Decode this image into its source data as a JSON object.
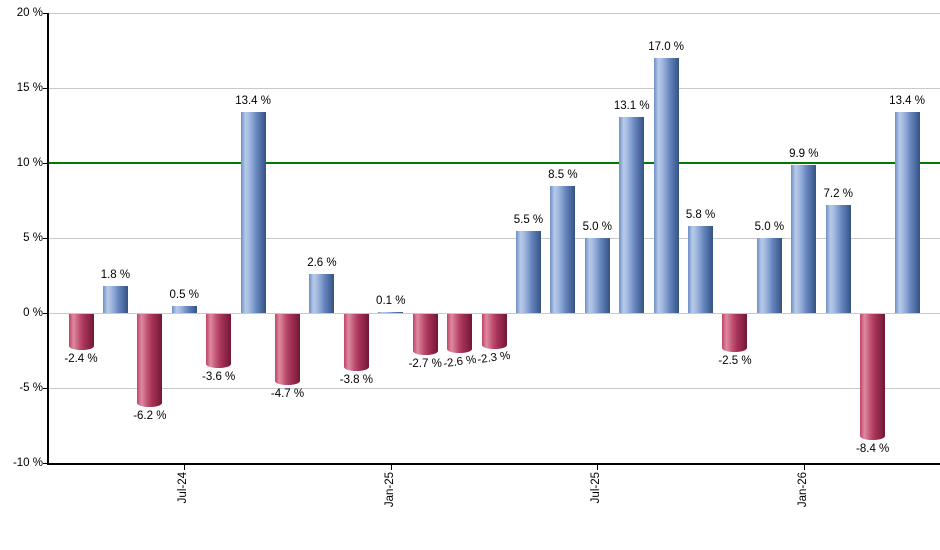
{
  "chart_data": {
    "type": "bar",
    "title": "",
    "xlabel": "",
    "ylabel": "",
    "ylim": [
      -10,
      20
    ],
    "grid": true,
    "y_ticks": [
      {
        "value": 20,
        "label": "20 %"
      },
      {
        "value": 15,
        "label": "15 %"
      },
      {
        "value": 10,
        "label": "10 %"
      },
      {
        "value": 5,
        "label": "5 %"
      },
      {
        "value": 0,
        "label": "0 %"
      },
      {
        "value": -5,
        "label": "-5 %"
      },
      {
        "value": -10,
        "label": "-10 %"
      }
    ],
    "x_ticks": [
      {
        "label": "Jul-24",
        "bar_index": 3
      },
      {
        "label": "Jan-25",
        "bar_index": 9
      },
      {
        "label": "Jul-25",
        "bar_index": 15
      },
      {
        "label": "Jan-26",
        "bar_index": 21
      }
    ],
    "reference_line": {
      "value": 10,
      "color": "#007a00"
    },
    "bars": [
      {
        "value": -2.4,
        "label": "-2.4 %"
      },
      {
        "value": 1.8,
        "label": "1.8 %"
      },
      {
        "value": -6.2,
        "label": "-6.2 %"
      },
      {
        "value": 0.5,
        "label": "0.5 %"
      },
      {
        "value": -3.6,
        "label": "-3.6 %"
      },
      {
        "value": 13.4,
        "label": "13.4 %"
      },
      {
        "value": -4.7,
        "label": "-4.7 %"
      },
      {
        "value": 2.6,
        "label": "2.6 %"
      },
      {
        "value": -3.8,
        "label": "-3.8 %"
      },
      {
        "value": 0.1,
        "label": "0.1 %"
      },
      {
        "value": -2.7,
        "label": "-2.7 %"
      },
      {
        "value": -2.6,
        "label": "-2.6 %",
        "rotated": true
      },
      {
        "value": -2.3,
        "label": "-2.3 %",
        "rotated": true
      },
      {
        "value": 5.5,
        "label": "5.5 %"
      },
      {
        "value": 8.5,
        "label": "8.5 %"
      },
      {
        "value": 5.0,
        "label": "5.0 %"
      },
      {
        "value": 13.1,
        "label": "13.1 %"
      },
      {
        "value": 17.0,
        "label": "17.0 %"
      },
      {
        "value": 5.8,
        "label": "5.8 %"
      },
      {
        "value": -2.5,
        "label": "-2.5 %"
      },
      {
        "value": 5.0,
        "label": "5.0 %"
      },
      {
        "value": 9.9,
        "label": "9.9 %"
      },
      {
        "value": 7.2,
        "label": "7.2 %"
      },
      {
        "value": -8.4,
        "label": "-8.4 %"
      },
      {
        "value": 13.4,
        "label": "13.4 %"
      }
    ],
    "colors": {
      "positive_bar": "#7b9bd2",
      "negative_bar": "#bb4a6c",
      "grid": "#c9c9c9",
      "axis": "#000000",
      "reference_line": "#007a00",
      "label_text": "#000000",
      "background": "#ffffff"
    },
    "legend": null
  }
}
